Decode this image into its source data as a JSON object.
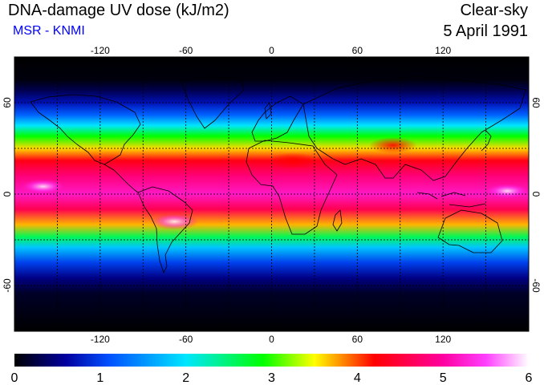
{
  "header": {
    "title": "DNA-damage UV dose (kJ/m2)",
    "source": "MSR - KNMI",
    "condition": "Clear-sky",
    "date": "5 April 1991"
  },
  "colors": {
    "source_text": "#0000ff",
    "coastline": "#000000",
    "grid": "#000000"
  },
  "map": {
    "projection": "equirectangular",
    "lon_range": [
      -180,
      180
    ],
    "lat_range": [
      -90,
      90
    ],
    "lon_ticks": [
      -120,
      -60,
      0,
      60,
      120
    ],
    "lon_tick_labels": [
      "-120",
      "-60",
      "0",
      "60",
      "120"
    ],
    "lat_ticks": [
      60,
      0,
      -60
    ],
    "lat_tick_labels": [
      "60",
      "0",
      "-60"
    ],
    "grid_lons": [
      -150,
      -120,
      -90,
      -60,
      -30,
      0,
      30,
      60,
      90,
      120,
      150
    ],
    "grid_lats": [
      60,
      30,
      0,
      -30,
      -60
    ],
    "grid_style": "dotted"
  },
  "colorbar": {
    "range": [
      0,
      6
    ],
    "tick_labels": [
      "0",
      "1",
      "2",
      "3",
      "4",
      "5",
      "6"
    ],
    "stops": [
      {
        "value": 0.0,
        "color": "#000000"
      },
      {
        "value": 0.6,
        "color": "#0000a0"
      },
      {
        "value": 1.1,
        "color": "#0050ff"
      },
      {
        "value": 2.0,
        "color": "#00e6ff"
      },
      {
        "value": 2.9,
        "color": "#00ff00"
      },
      {
        "value": 3.5,
        "color": "#ffff00"
      },
      {
        "value": 4.2,
        "color": "#ff0000"
      },
      {
        "value": 5.0,
        "color": "#ff00a0"
      },
      {
        "value": 5.5,
        "color": "#ff40ff"
      },
      {
        "value": 6.0,
        "color": "#ffffff"
      }
    ]
  },
  "dose_profile_by_latitude": [
    {
      "lat": 90,
      "dose": 0.0
    },
    {
      "lat": 75,
      "dose": 0.05
    },
    {
      "lat": 68,
      "dose": 0.3
    },
    {
      "lat": 60,
      "dose": 0.7
    },
    {
      "lat": 52,
      "dose": 1.2
    },
    {
      "lat": 45,
      "dose": 2.0
    },
    {
      "lat": 38,
      "dose": 2.9
    },
    {
      "lat": 30,
      "dose": 3.6
    },
    {
      "lat": 22,
      "dose": 4.3
    },
    {
      "lat": 12,
      "dose": 4.8
    },
    {
      "lat": 0,
      "dose": 5.2
    },
    {
      "lat": -10,
      "dose": 4.6
    },
    {
      "lat": -20,
      "dose": 3.7
    },
    {
      "lat": -28,
      "dose": 2.6
    },
    {
      "lat": -35,
      "dose": 1.8
    },
    {
      "lat": -45,
      "dose": 1.0
    },
    {
      "lat": -55,
      "dose": 0.5
    },
    {
      "lat": -65,
      "dose": 0.15
    },
    {
      "lat": -90,
      "dose": 0.0
    }
  ],
  "regional_anomalies": [
    {
      "name": "tibetan-plateau-high",
      "lon": 85,
      "lat": 32,
      "dose": 4.3
    },
    {
      "name": "andes-altiplano-high",
      "lon": -68,
      "lat": -18,
      "dose": 5.6
    },
    {
      "name": "west-pacific-peak",
      "lon": 165,
      "lat": 2,
      "dose": 5.8
    },
    {
      "name": "east-pacific-peak",
      "lon": -160,
      "lat": 5,
      "dose": 5.5
    },
    {
      "name": "sahara-high",
      "lon": 15,
      "lat": 22,
      "dose": 4.6
    }
  ]
}
